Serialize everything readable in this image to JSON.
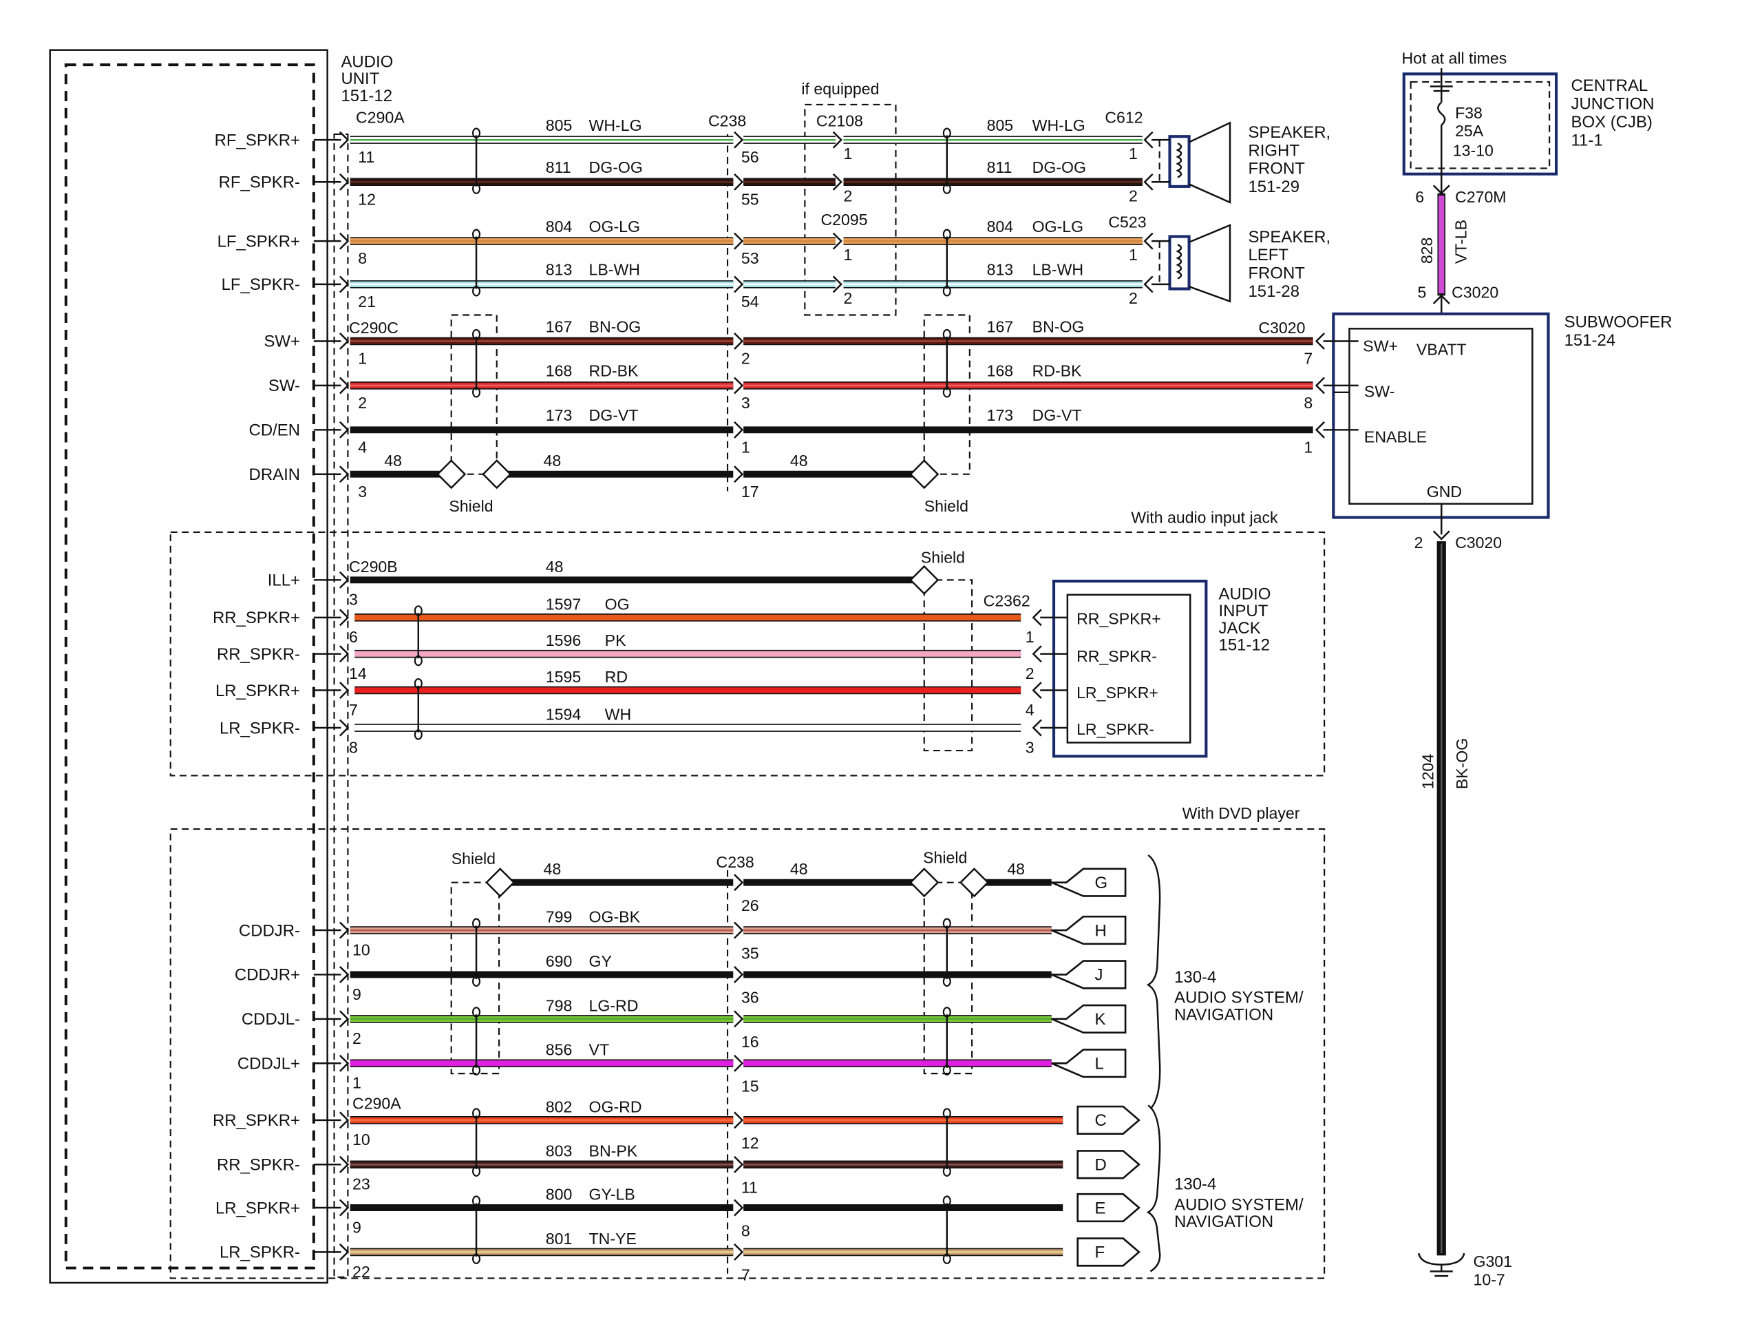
{
  "audio_unit": {
    "title_lines": [
      "AUDIO",
      "UNIT",
      "151-12"
    ]
  },
  "notes": {
    "if_equipped": "if equipped",
    "hot_at_all_times": "Hot at all times",
    "with_audio_input_jack": "With audio input jack",
    "with_dvd_player": "With DVD player",
    "shield": "Shield"
  },
  "connectors": {
    "c290a": "C290A",
    "c238": "C238",
    "c2108": "C2108",
    "c2095": "C2095",
    "c612": "C612",
    "c523": "C523",
    "c290c": "C290C",
    "c3020": "C3020",
    "c290b": "C290B",
    "c2362": "C2362",
    "c270m": "C270M",
    "g301": "G301",
    "g301_ref": "10-7"
  },
  "front_wires": [
    {
      "pin_name": "RF_SPKR+",
      "circuit": "805",
      "color_code": "WH-LG",
      "colors": [
        "#ffffff",
        "#4caf50"
      ],
      "pins": [
        "11",
        "56",
        "1",
        "1"
      ]
    },
    {
      "pin_name": "RF_SPKR-",
      "circuit": "811",
      "color_code": "DG-OG",
      "colors": [
        "#2a1410",
        "#5a2a1a"
      ],
      "pins": [
        "12",
        "55",
        "2",
        "2"
      ]
    },
    {
      "pin_name": "LF_SPKR+",
      "circuit": "804",
      "color_code": "OG-LG",
      "colors": [
        "#e8a05a",
        "#d08840"
      ],
      "pins": [
        "8",
        "53",
        "1",
        "1"
      ]
    },
    {
      "pin_name": "LF_SPKR-",
      "circuit": "813",
      "color_code": "LB-WH",
      "colors": [
        "#9fe0ea",
        "#ffffff"
      ],
      "pins": [
        "21",
        "54",
        "2",
        "2"
      ]
    },
    {
      "pin_name": "SW+",
      "circuit": "167",
      "color_code": "BN-OG",
      "colors": [
        "#5a1a10",
        "#a04030"
      ],
      "pins": [
        "1",
        "2",
        "7"
      ]
    },
    {
      "pin_name": "SW-",
      "circuit": "168",
      "color_code": "RD-BK",
      "colors": [
        "#d82a2a",
        "#f06060"
      ],
      "pins": [
        "2",
        "3",
        "8"
      ]
    },
    {
      "pin_name": "CD/EN",
      "circuit": "173",
      "color_code": "DG-VT",
      "colors": [
        "#111111",
        "#111111"
      ],
      "pins": [
        "4",
        "1",
        "1"
      ]
    },
    {
      "pin_name": "DRAIN",
      "circuit": "48",
      "color_code": "",
      "colors": [
        "#111111",
        "#111111"
      ],
      "pins": [
        "3",
        "17"
      ]
    }
  ],
  "speakers": [
    {
      "lines": [
        "SPEAKER,",
        "RIGHT",
        "FRONT",
        "151-29"
      ]
    },
    {
      "lines": [
        "SPEAKER,",
        "LEFT",
        "FRONT",
        "151-28"
      ]
    }
  ],
  "cjb": {
    "lines": [
      "CENTRAL",
      "JUNCTION",
      "BOX (CJB)",
      "11-1"
    ],
    "fuse": [
      "F38",
      "25A",
      "13-10"
    ]
  },
  "power_wire": {
    "circuit": "828",
    "color_code": "VT-LB",
    "color": "#d04ad8",
    "pin_top": "6",
    "pin_bottom": "5"
  },
  "subwoofer": {
    "lines": [
      "SUBWOOFER",
      "151-24"
    ],
    "pins": [
      "SW+",
      "VBATT",
      "SW-",
      "ENABLE",
      "GND"
    ]
  },
  "ground_wire": {
    "circuit": "1204",
    "color_code": "BK-OG",
    "pin": "2"
  },
  "jack_wires": [
    {
      "pin_name": "ILL+",
      "circuit": "48",
      "color_code": "",
      "colors": [
        "#111111",
        "#111111"
      ],
      "pins": [
        "3"
      ]
    },
    {
      "pin_name": "RR_SPKR+",
      "circuit": "1597",
      "color_code": "OG",
      "colors": [
        "#e85a1a",
        "#e85a1a"
      ],
      "pins": [
        "6",
        "1"
      ]
    },
    {
      "pin_name": "RR_SPKR-",
      "circuit": "1596",
      "color_code": "PK",
      "colors": [
        "#f4a8c4",
        "#f4a8c4"
      ],
      "pins": [
        "14",
        "2"
      ]
    },
    {
      "pin_name": "LR_SPKR+",
      "circuit": "1595",
      "color_code": "RD",
      "colors": [
        "#e82020",
        "#e82020"
      ],
      "pins": [
        "7",
        "4"
      ]
    },
    {
      "pin_name": "LR_SPKR-",
      "circuit": "1594",
      "color_code": "WH",
      "colors": [
        "#ffffff",
        "#ffffff"
      ],
      "pins": [
        "8",
        "3"
      ]
    }
  ],
  "audio_input_jack": {
    "lines": [
      "AUDIO",
      "INPUT",
      "JACK",
      "151-12"
    ],
    "pins": [
      "RR_SPKR+",
      "RR_SPKR-",
      "LR_SPKR+",
      "LR_SPKR-"
    ]
  },
  "dvd_wires": [
    {
      "pin_name": "",
      "circuit": "48",
      "color_code": "",
      "colors": [
        "#111111",
        "#111111"
      ],
      "pins": [
        "26"
      ],
      "terminal": "G"
    },
    {
      "pin_name": "CDDJR-",
      "circuit": "799",
      "color_code": "OG-BK",
      "colors": [
        "#e0a090",
        "#b06050"
      ],
      "pins": [
        "10",
        "35"
      ],
      "terminal": "H"
    },
    {
      "pin_name": "CDDJR+",
      "circuit": "690",
      "color_code": "GY",
      "colors": [
        "#111111",
        "#111111"
      ],
      "pins": [
        "9",
        "36"
      ],
      "terminal": "J"
    },
    {
      "pin_name": "CDDJL-",
      "circuit": "798",
      "color_code": "LG-RD",
      "colors": [
        "#7acb3a",
        "#5aa82a"
      ],
      "pins": [
        "2",
        "16"
      ],
      "terminal": "K"
    },
    {
      "pin_name": "CDDJL+",
      "circuit": "856",
      "color_code": "VT",
      "colors": [
        "#e020e0",
        "#e020e0"
      ],
      "pins": [
        "1",
        "15"
      ],
      "terminal": "L"
    },
    {
      "pin_name": "RR_SPKR+",
      "circuit": "802",
      "color_code": "OG-RD",
      "colors": [
        "#f04420",
        "#f07040"
      ],
      "pins": [
        "10",
        "12"
      ],
      "terminal": "C"
    },
    {
      "pin_name": "RR_SPKR-",
      "circuit": "803",
      "color_code": "BN-PK",
      "colors": [
        "#3a1a1a",
        "#8a5050"
      ],
      "pins": [
        "23",
        "11"
      ],
      "terminal": "D"
    },
    {
      "pin_name": "LR_SPKR+",
      "circuit": "800",
      "color_code": "GY-LB",
      "colors": [
        "#111111",
        "#333333"
      ],
      "pins": [
        "9",
        "8"
      ],
      "terminal": "E"
    },
    {
      "pin_name": "LR_SPKR-",
      "circuit": "801",
      "color_code": "TN-YE",
      "colors": [
        "#c8a070",
        "#e8d090"
      ],
      "pins": [
        "22",
        "7"
      ],
      "terminal": "F"
    }
  ],
  "audio_system": {
    "lines": [
      "130-4",
      "AUDIO SYSTEM/",
      "NAVIGATION"
    ]
  }
}
